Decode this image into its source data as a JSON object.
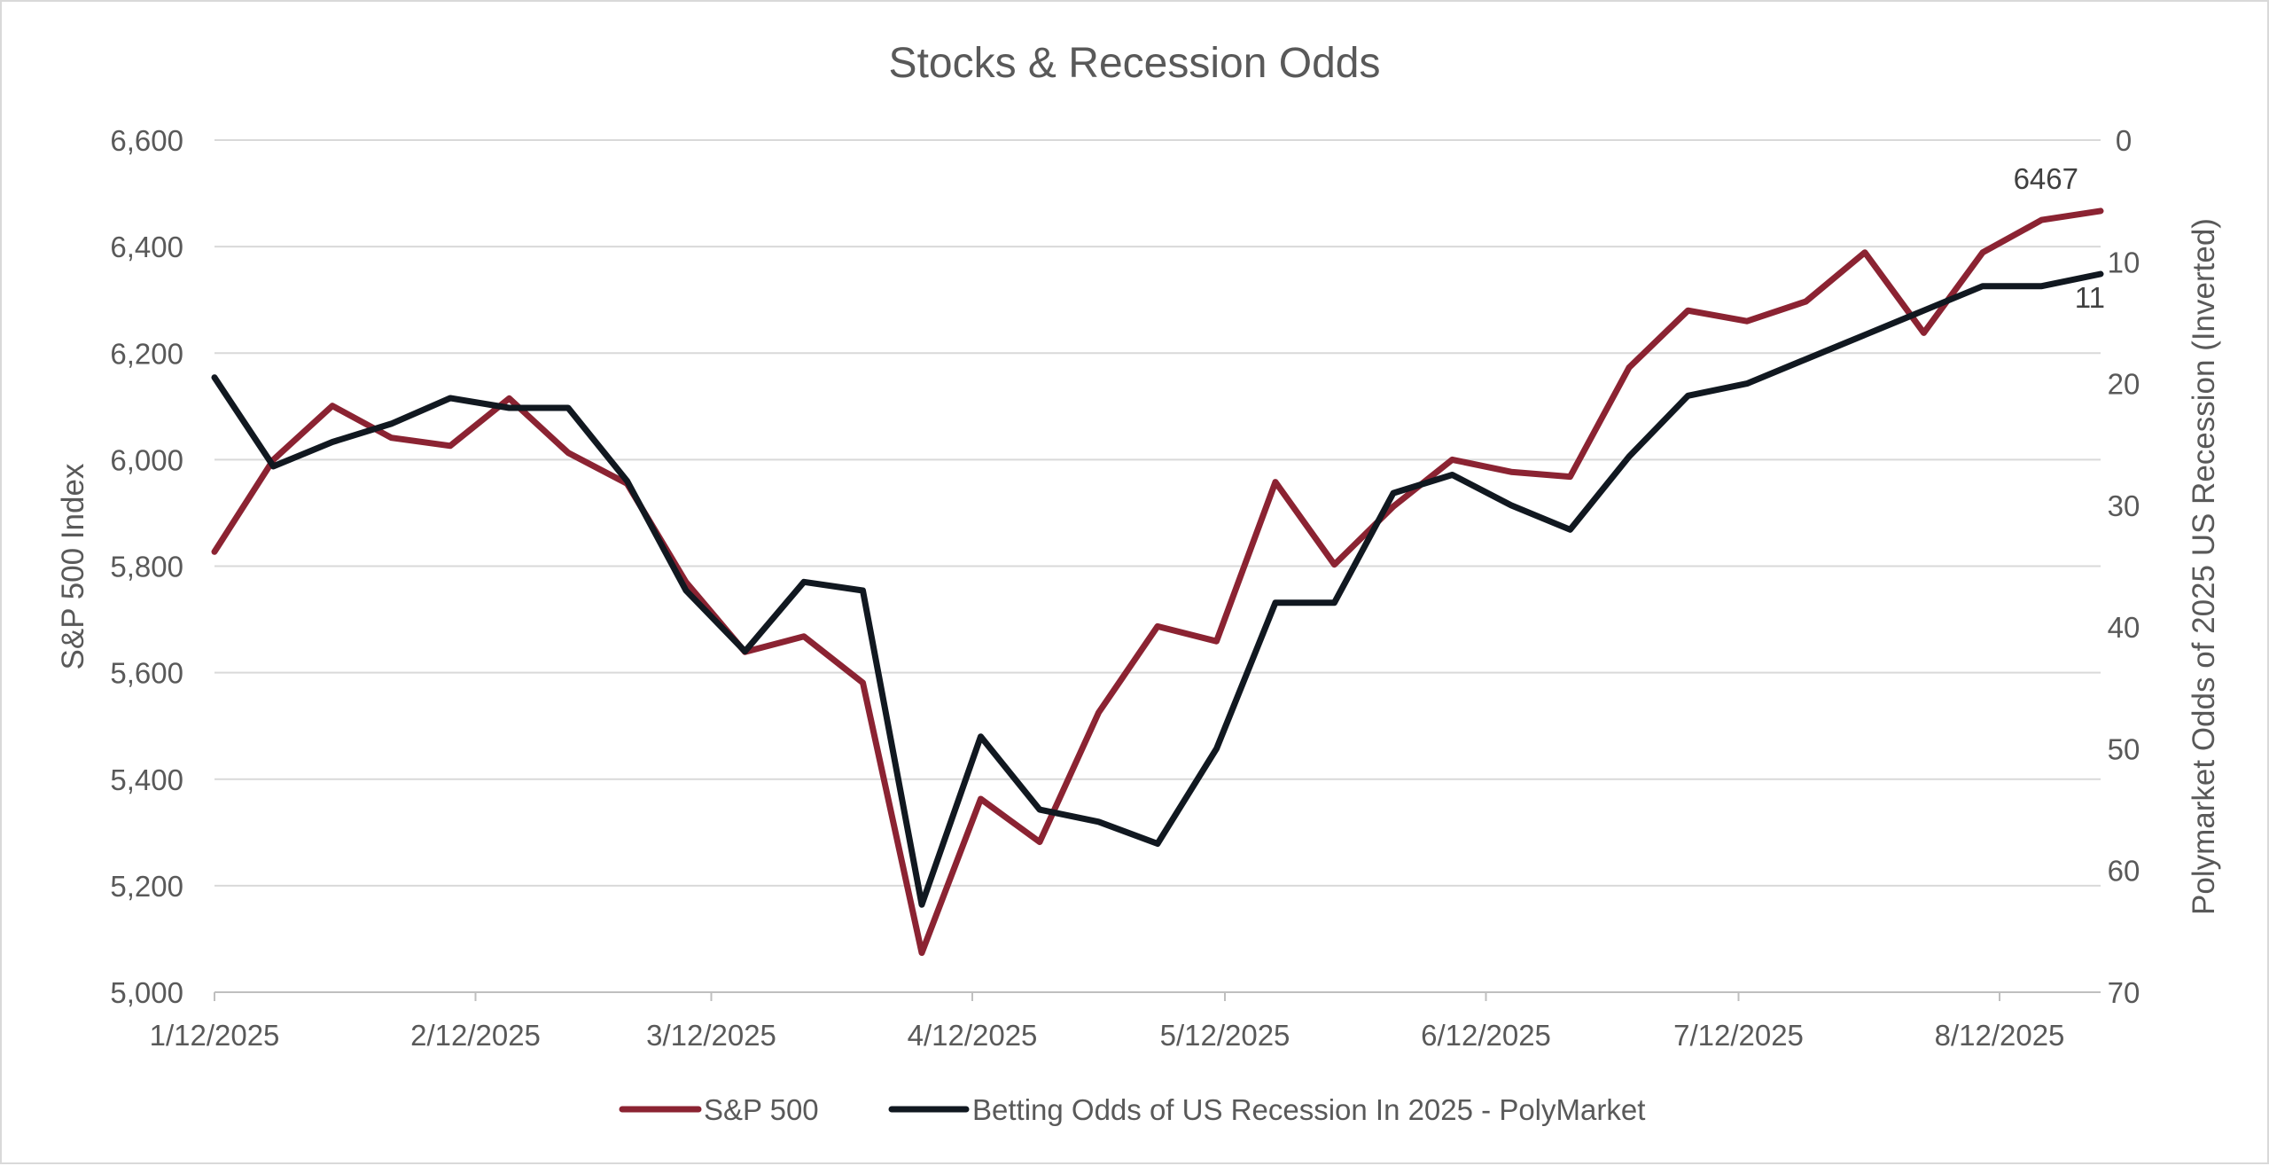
{
  "chart_data": {
    "type": "line",
    "title": "Stocks & Recession Odds",
    "ylabel": "S&P 500 Index",
    "y2label": "Polymarket Odds of 2025 US Recession (Inverted)",
    "ylim": [
      5000,
      6600
    ],
    "y2lim": [
      0,
      70
    ],
    "y2_inverted": true,
    "y_ticks": [
      "5,000",
      "5,200",
      "5,400",
      "5,600",
      "5,800",
      "6,000",
      "6,200",
      "6,400",
      "6,600"
    ],
    "y2_ticks": [
      "0",
      "10",
      "20",
      "30",
      "40",
      "50",
      "60",
      "70"
    ],
    "x_ticks": [
      "1/12/2025",
      "2/12/2025",
      "3/12/2025",
      "4/12/2025",
      "5/12/2025",
      "6/12/2025",
      "7/12/2025",
      "8/12/2025"
    ],
    "x": [
      "2025-01-12",
      "2025-01-19",
      "2025-01-26",
      "2025-02-02",
      "2025-02-09",
      "2025-02-16",
      "2025-02-23",
      "2025-03-02",
      "2025-03-09",
      "2025-03-16",
      "2025-03-23",
      "2025-03-30",
      "2025-04-06",
      "2025-04-13",
      "2025-04-20",
      "2025-04-27",
      "2025-05-04",
      "2025-05-11",
      "2025-05-18",
      "2025-05-25",
      "2025-06-01",
      "2025-06-08",
      "2025-06-15",
      "2025-06-22",
      "2025-06-29",
      "2025-07-06",
      "2025-07-13",
      "2025-07-20",
      "2025-07-27",
      "2025-08-03",
      "2025-08-10",
      "2025-08-17",
      "2025-08-24"
    ],
    "series": [
      {
        "name": "S&P 500",
        "axis": "left",
        "color": "#8b2332",
        "values": [
          5827,
          6000,
          6101,
          6041,
          6026,
          6115,
          6013,
          5955,
          5770,
          5639,
          5668,
          5581,
          5074,
          5363,
          5282,
          5525,
          5687,
          5659,
          5958,
          5803,
          5912,
          6000,
          5977,
          5968,
          6173,
          6280,
          6260,
          6297,
          6389,
          6238,
          6389,
          6450,
          6467
        ]
      },
      {
        "name": "Betting Odds of US Recession In 2025 - PolyMarket",
        "axis": "right",
        "color": "#111820",
        "values": [
          19.5,
          26.8,
          24.8,
          23.3,
          21.2,
          22.0,
          22.0,
          28.0,
          37.0,
          42.0,
          36.3,
          37.0,
          62.8,
          49.0,
          55.0,
          56.0,
          57.8,
          50.0,
          38.0,
          38.0,
          29.0,
          27.5,
          30.0,
          32.0,
          26.0,
          21.0,
          20.0,
          18.0,
          16.0,
          14.0,
          12.0,
          12.0,
          11.0
        ]
      }
    ],
    "data_labels": {
      "sp500_last": "6467",
      "odds_last": "11"
    },
    "legend_position": "bottom",
    "grid": true
  }
}
